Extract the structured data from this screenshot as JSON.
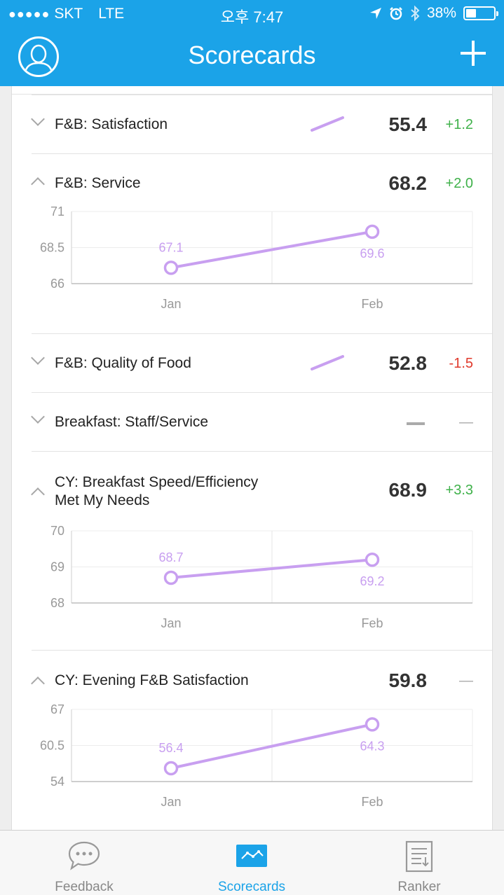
{
  "status_bar": {
    "carrier_dots": "●●●●●",
    "carrier": "SKT",
    "network": "LTE",
    "time": "오후 7:47",
    "battery": "38%",
    "battery_level": 0.38
  },
  "header": {
    "title": "Scorecards"
  },
  "metrics": [
    {
      "name": "F&B: Satisfaction",
      "value": "55.4",
      "delta": "+1.2",
      "expanded": false
    },
    {
      "name": "F&B: Service",
      "value": "68.2",
      "delta": "+2.0",
      "expanded": true,
      "chart": {
        "ylim": [
          66,
          71
        ],
        "y_ticks": [
          "71",
          "68.5",
          "66"
        ],
        "x": [
          "Jan",
          "Feb"
        ],
        "y": [
          67.1,
          69.6
        ],
        "labels": [
          "67.1",
          "69.6"
        ]
      }
    },
    {
      "name": "F&B: Quality of Food",
      "value": "52.8",
      "delta": "-1.5",
      "expanded": false
    },
    {
      "name": "Breakfast: Staff/Service",
      "value": "",
      "delta": "—",
      "expanded": false
    },
    {
      "name_line1": "CY: Breakfast Speed/Efficiency",
      "name_line2": "Met My Needs",
      "value": "68.9",
      "delta": "+3.3",
      "expanded": true,
      "chart": {
        "ylim": [
          68,
          70
        ],
        "y_ticks": [
          "70",
          "69",
          "68"
        ],
        "x": [
          "Jan",
          "Feb"
        ],
        "y": [
          68.7,
          69.2
        ],
        "labels": [
          "68.7",
          "69.2"
        ]
      }
    },
    {
      "name": "CY: Evening F&B Satisfaction",
      "value": "59.8",
      "delta": "—",
      "expanded": true,
      "chart": {
        "ylim": [
          54,
          67
        ],
        "y_ticks": [
          "67",
          "60.5",
          "54"
        ],
        "x": [
          "Jan",
          "Feb"
        ],
        "y": [
          56.4,
          64.3
        ],
        "labels": [
          "56.4",
          "64.3"
        ]
      }
    }
  ],
  "chart_data": [
    {
      "type": "line",
      "categories": [
        "Jan",
        "Feb"
      ],
      "values": [
        67.1,
        69.6
      ],
      "ylim": [
        66,
        71
      ]
    },
    {
      "type": "line",
      "categories": [
        "Jan",
        "Feb"
      ],
      "values": [
        68.7,
        69.2
      ],
      "ylim": [
        68,
        70
      ]
    },
    {
      "type": "line",
      "categories": [
        "Jan",
        "Feb"
      ],
      "values": [
        56.4,
        64.3
      ],
      "ylim": [
        54,
        67
      ]
    }
  ],
  "colors": {
    "brand": "#1ba3e8",
    "line": "#c89ff0",
    "positive": "#3fb14a",
    "negative": "#e0392b"
  },
  "tabs": [
    {
      "label": "Feedback",
      "icon": "chat-bubble-icon"
    },
    {
      "label": "Scorecards",
      "icon": "scorecard-chart-icon"
    },
    {
      "label": "Ranker",
      "icon": "ranker-list-icon"
    }
  ]
}
